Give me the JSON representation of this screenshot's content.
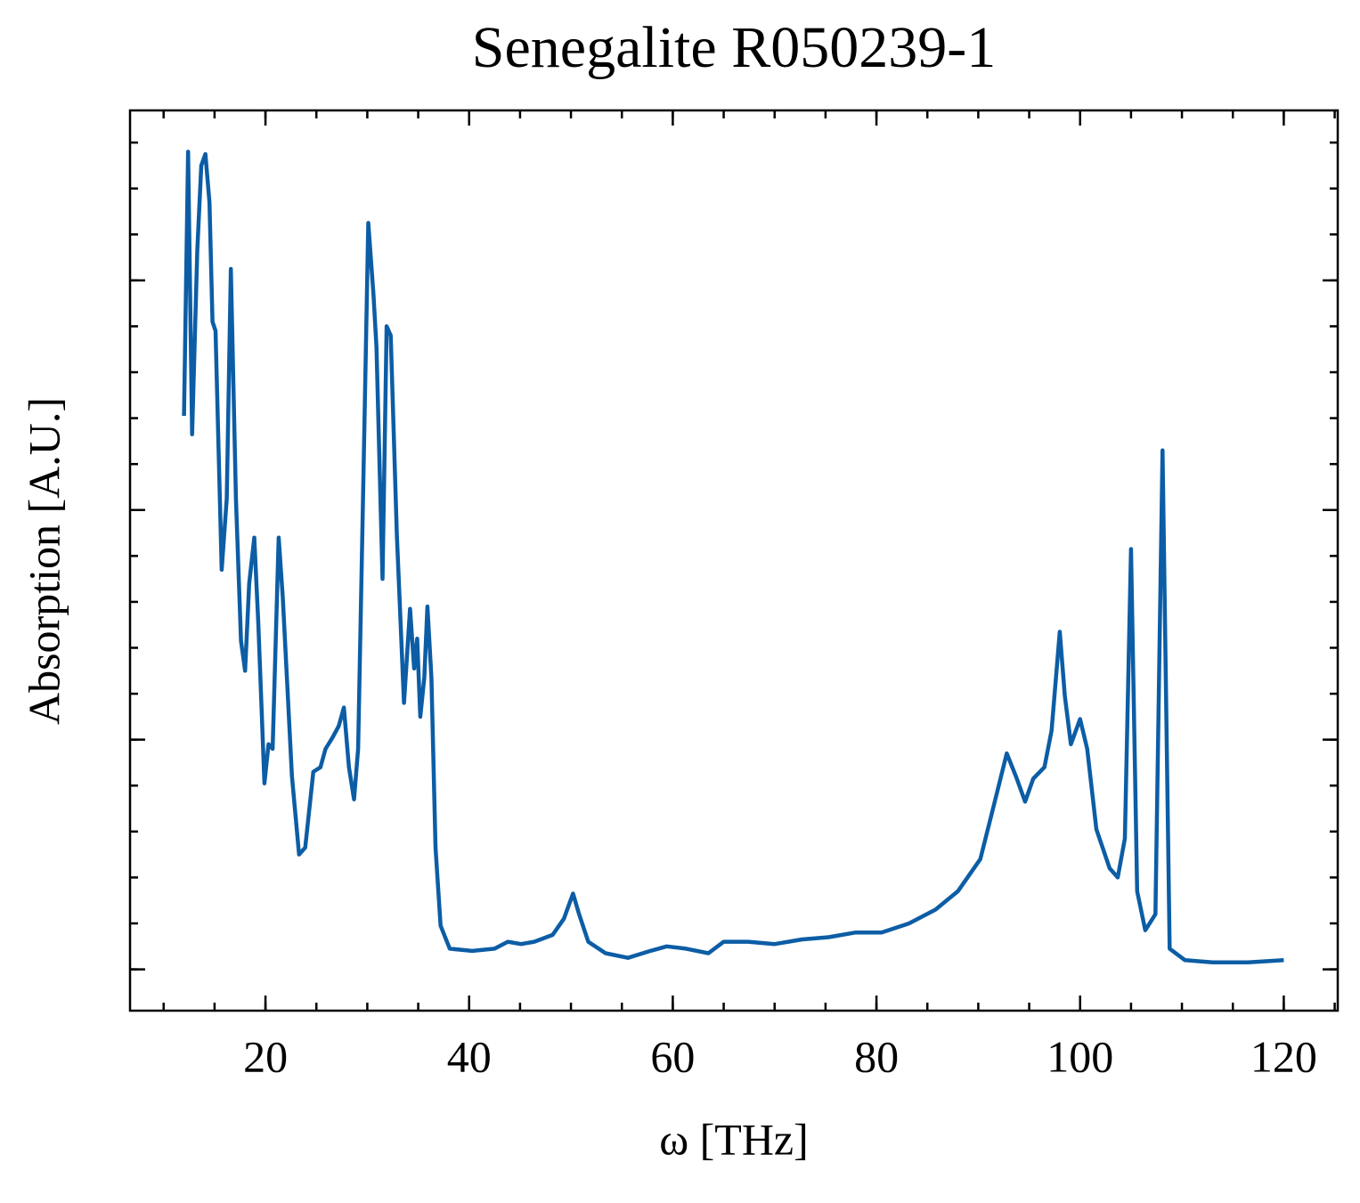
{
  "chart_data": {
    "type": "line",
    "title": "Senegalite R050239-1",
    "xlabel": "ω [THz]",
    "ylabel": "Absorption [A.U.]",
    "xlim": [
      6.7,
      125.3
    ],
    "xticks": [
      20,
      40,
      60,
      80,
      100,
      120
    ],
    "xminor_step": 5,
    "ylim": [
      -0.18,
      3.74
    ],
    "yticks": [
      0,
      1,
      2,
      3
    ],
    "yminor_step": 0.2,
    "ytick_labels": false,
    "ticks_direction": "in",
    "mirror_ticks": true,
    "grid": false,
    "series": [
      {
        "color": "#0c5da5",
        "x": [
          12.0,
          12.4,
          12.8,
          13.3,
          13.7,
          14.1,
          14.5,
          14.8,
          15.1,
          15.7,
          16.2,
          16.6,
          17.1,
          17.6,
          18.0,
          18.4,
          18.9,
          19.3,
          19.9,
          20.3,
          20.7,
          21.3,
          21.7,
          22.6,
          23.3,
          23.9,
          24.7,
          25.4,
          25.9,
          26.6,
          27.2,
          27.7,
          28.2,
          28.7,
          29.1,
          29.6,
          30.1,
          30.6,
          30.9,
          31.5,
          31.9,
          32.3,
          32.9,
          33.6,
          34.2,
          34.6,
          34.9,
          35.2,
          35.6,
          35.9,
          36.3,
          36.7,
          37.2,
          38.1,
          40.3,
          42.5,
          43.8,
          45.1,
          46.4,
          48.2,
          49.3,
          50.2,
          50.8,
          51.7,
          53.4,
          55.6,
          57.8,
          59.4,
          61.3,
          63.5,
          65.0,
          67.4,
          70.0,
          72.7,
          75.3,
          77.9,
          80.5,
          83.2,
          85.8,
          88.0,
          90.2,
          91.5,
          92.8,
          93.7,
          94.6,
          95.4,
          96.5,
          97.2,
          98.0,
          98.5,
          99.1,
          100.0,
          100.7,
          101.6,
          102.9,
          103.7,
          104.4,
          105.0,
          105.6,
          106.4,
          107.4,
          108.1,
          108.8,
          110.3,
          113.0,
          116.5,
          120.0
        ],
        "values": [
          2.41,
          3.56,
          2.33,
          3.13,
          3.5,
          3.55,
          3.34,
          2.82,
          2.78,
          1.74,
          2.05,
          3.05,
          2.05,
          1.43,
          1.3,
          1.68,
          1.88,
          1.5,
          0.81,
          0.98,
          0.96,
          1.88,
          1.62,
          0.84,
          0.5,
          0.53,
          0.86,
          0.88,
          0.96,
          1.01,
          1.06,
          1.14,
          0.88,
          0.74,
          0.96,
          2.09,
          3.25,
          2.94,
          2.71,
          1.7,
          2.8,
          2.76,
          1.89,
          1.16,
          1.57,
          1.31,
          1.44,
          1.1,
          1.27,
          1.58,
          1.27,
          0.53,
          0.19,
          0.09,
          0.08,
          0.09,
          0.12,
          0.11,
          0.12,
          0.15,
          0.22,
          0.33,
          0.24,
          0.12,
          0.07,
          0.05,
          0.08,
          0.1,
          0.09,
          0.07,
          0.12,
          0.12,
          0.11,
          0.13,
          0.14,
          0.16,
          0.16,
          0.2,
          0.26,
          0.34,
          0.48,
          0.71,
          0.94,
          0.84,
          0.73,
          0.83,
          0.88,
          1.04,
          1.47,
          1.19,
          0.98,
          1.09,
          0.96,
          0.61,
          0.44,
          0.4,
          0.57,
          1.83,
          0.34,
          0.17,
          0.24,
          2.26,
          0.09,
          0.04,
          0.03,
          0.03,
          0.04
        ]
      }
    ]
  }
}
